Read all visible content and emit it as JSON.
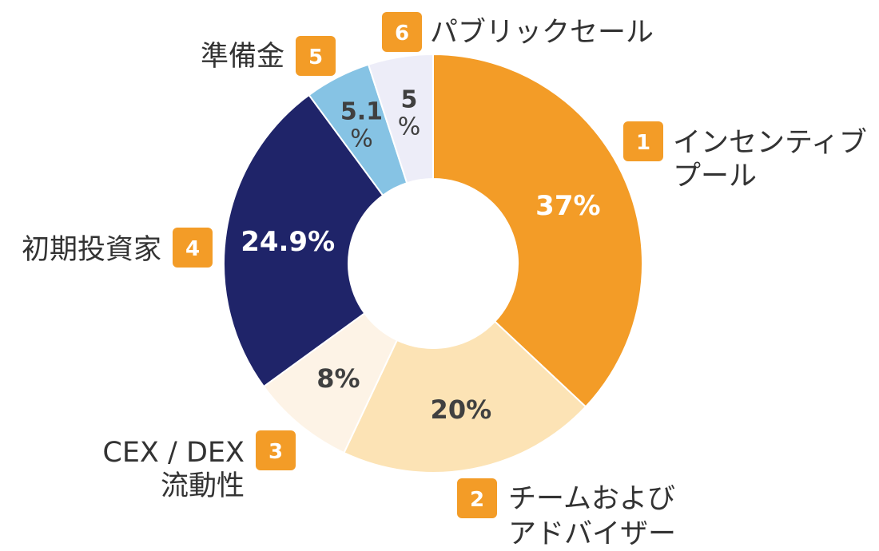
{
  "chart_data": {
    "type": "pie",
    "style": "donut",
    "categories": [
      "インセンティブプール",
      "チームおよびアドバイザー",
      "CEX / DEX 流動性",
      "初期投資家",
      "準備金",
      "パブリックセール"
    ],
    "values": [
      37,
      20,
      8,
      24.9,
      5.1,
      5
    ],
    "value_labels": [
      "37%",
      "20%",
      "8%",
      "24.9%",
      "5.1%",
      "5%"
    ],
    "slice_colors": [
      "#F39C27",
      "#FCE3B5",
      "#FDF3E6",
      "#1F2469",
      "#86C3E4",
      "#EDEDF8"
    ],
    "label_colors": [
      "#FFFFFF",
      "#404040",
      "#404040",
      "#FFFFFF",
      "#404040",
      "#404040"
    ],
    "start_angle_deg": 0,
    "direction": "clockwise",
    "legend": [
      {
        "number": "1",
        "lines": [
          "インセンティブ",
          "プール"
        ]
      },
      {
        "number": "2",
        "lines": [
          "チームおよび",
          "アドバイザー"
        ]
      },
      {
        "number": "3",
        "lines": [
          "CEX / DEX",
          "流動性"
        ]
      },
      {
        "number": "4",
        "lines": [
          "初期投資家"
        ]
      },
      {
        "number": "5",
        "lines": [
          "準備金"
        ]
      },
      {
        "number": "6",
        "lines": [
          "パブリックセール"
        ]
      }
    ],
    "badge_color": "#F39C27"
  }
}
